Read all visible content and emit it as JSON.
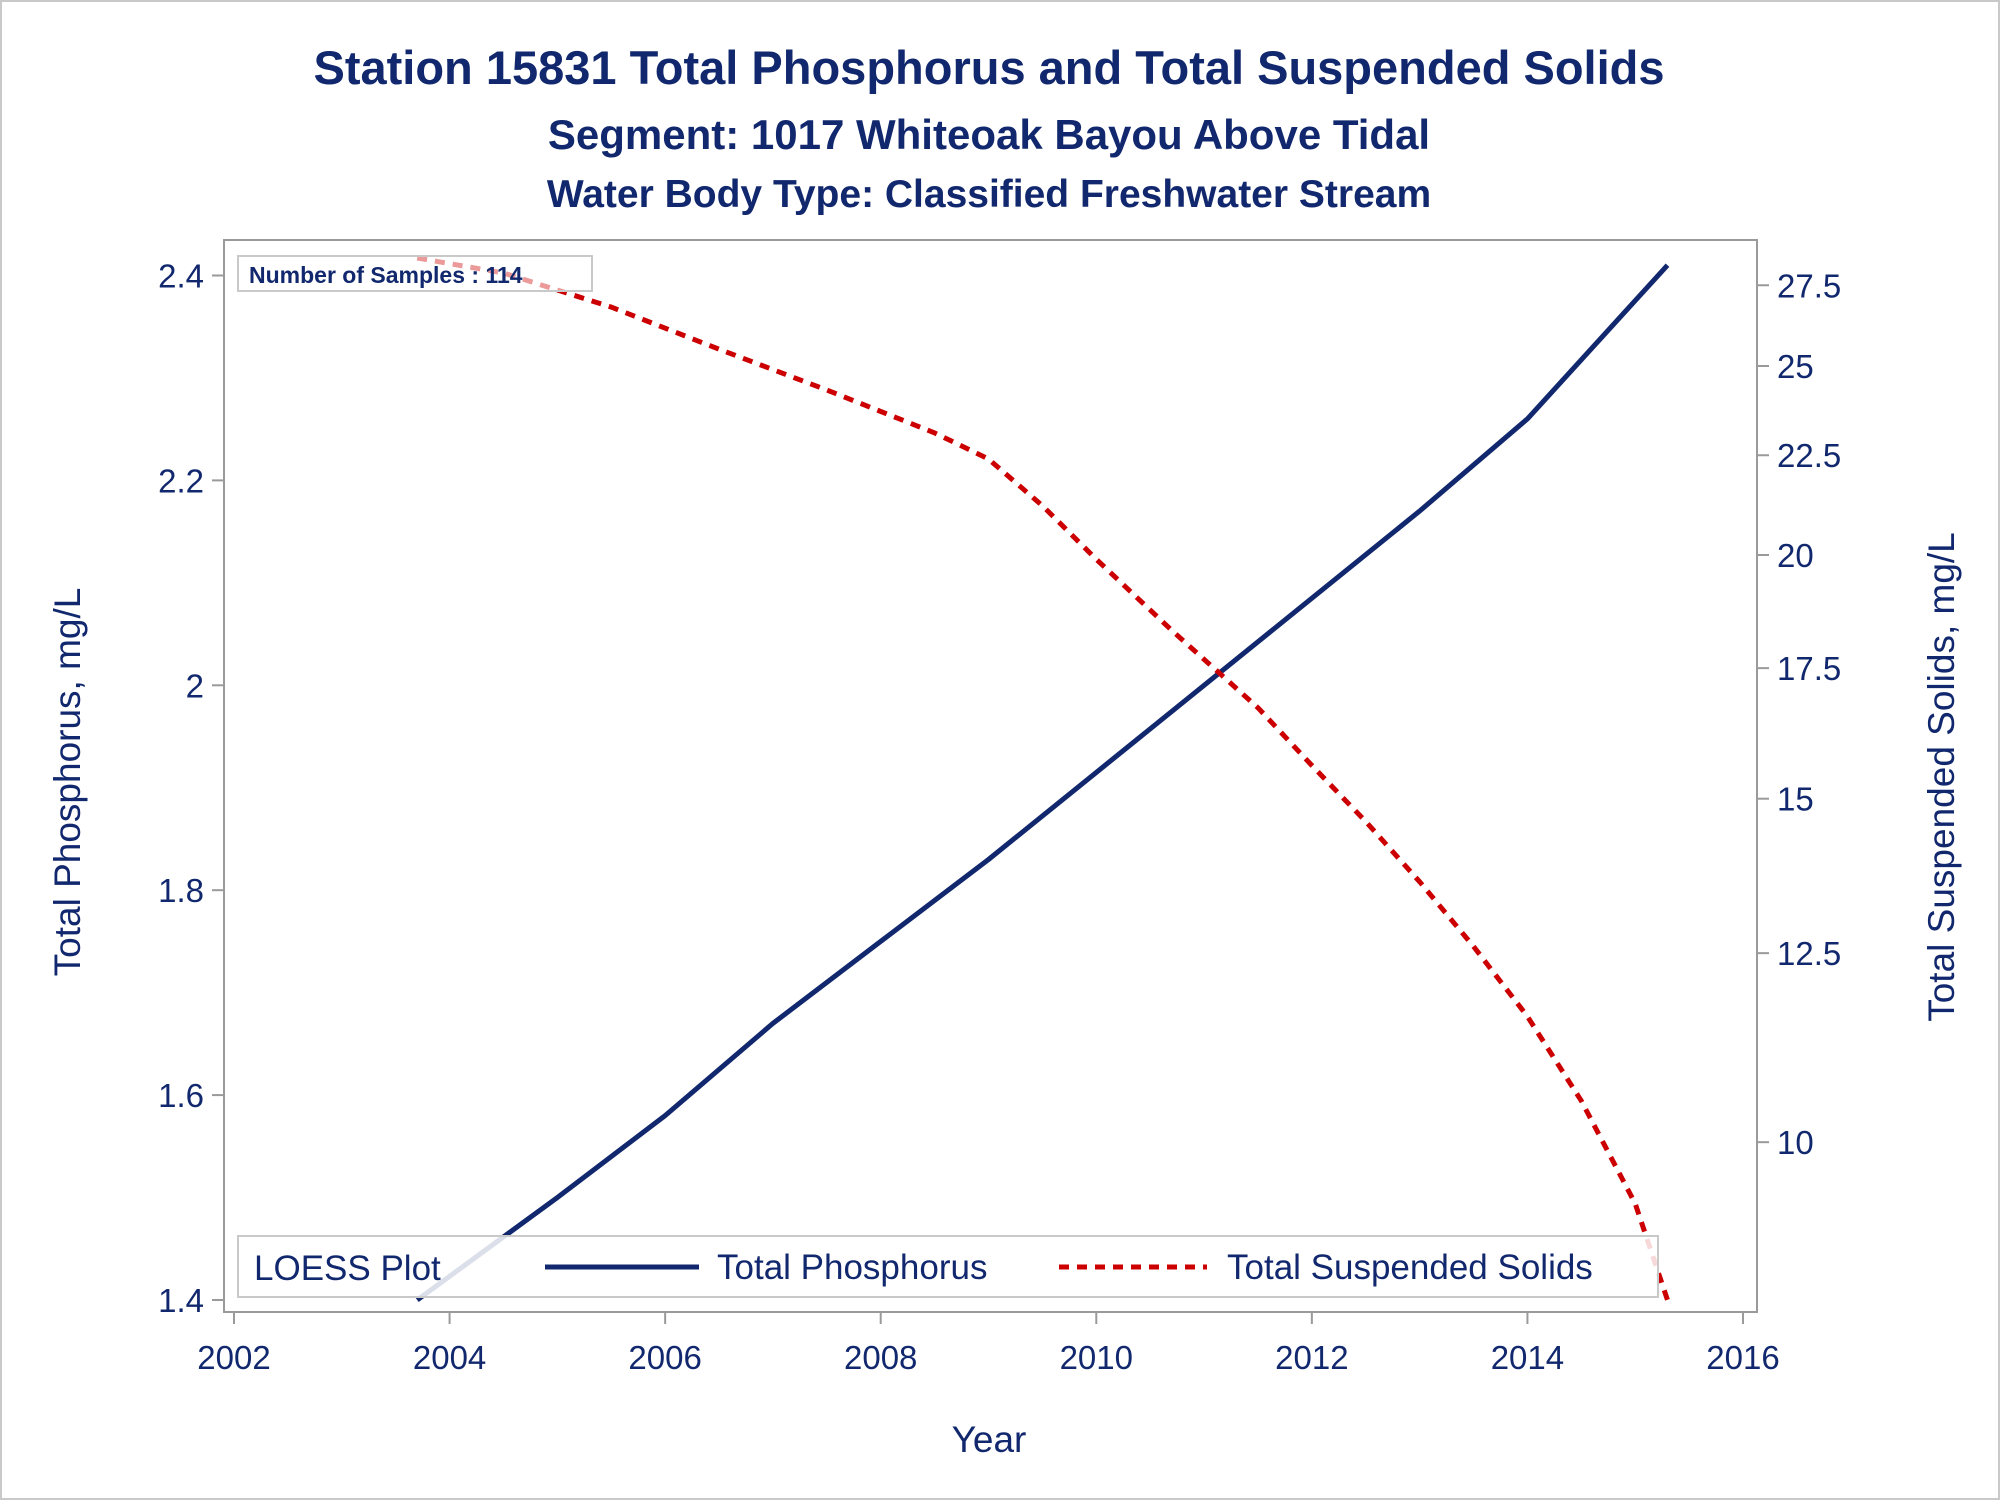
{
  "chart_data": {
    "type": "line",
    "title": "Station 15831  Total Phosphorus and Total Suspended Solids",
    "subtitle": "Segment: 1017  Whiteoak Bayou Above Tidal",
    "subtitle2": "Water Body Type: Classified Freshwater Stream",
    "xlabel": "Year",
    "ylabel": "Total Phosphorus, mg/L",
    "y2label": "Total Suspended Solids, mg/L",
    "xlim": [
      2002,
      2016
    ],
    "ylim": [
      1.4,
      2.42
    ],
    "y2lim": [
      8.3,
      28.5
    ],
    "y2scale": "log",
    "x_ticks": [
      "2002",
      "2004",
      "2006",
      "2008",
      "2010",
      "2012",
      "2014",
      "2016"
    ],
    "y_ticks": [
      "1.4",
      "1.6",
      "1.8",
      "2",
      "2.2",
      "2.4"
    ],
    "y2_ticks": [
      "10",
      "12.5",
      "15",
      "17.5",
      "20",
      "22.5",
      "25",
      "27.5"
    ],
    "annotation": "Number of Samples : 114",
    "legend": {
      "title": "LOESS Plot",
      "position": "bottom-inside",
      "entries": [
        "Total Phosphorus",
        "Total Suspended Solids"
      ]
    },
    "series": [
      {
        "name": "Total Phosphorus",
        "axis": "left",
        "color": "#12286e",
        "style": "solid",
        "x": [
          2003.7,
          2005,
          2006,
          2007,
          2008,
          2009,
          2010,
          2011,
          2012,
          2013,
          2014,
          2015.3
        ],
        "y": [
          1.4,
          1.5,
          1.58,
          1.67,
          1.75,
          1.83,
          1.915,
          2.0,
          2.085,
          2.17,
          2.26,
          2.41
        ]
      },
      {
        "name": "Total Suspended Solids",
        "axis": "right",
        "color": "#cc0000",
        "style": "dashed",
        "x": [
          2003.7,
          2004.5,
          2005.5,
          2006.5,
          2007.5,
          2008.5,
          2009,
          2009.5,
          2010,
          2010.7,
          2011.5,
          2012,
          2012.5,
          2013,
          2013.5,
          2014,
          2014.5,
          2015,
          2015.3
        ],
        "y": [
          28.4,
          27.9,
          26.8,
          25.5,
          24.3,
          23.1,
          22.4,
          21.2,
          19.9,
          18.3,
          16.7,
          15.6,
          14.6,
          13.6,
          12.6,
          11.6,
          10.5,
          9.3,
          8.3
        ]
      }
    ]
  }
}
